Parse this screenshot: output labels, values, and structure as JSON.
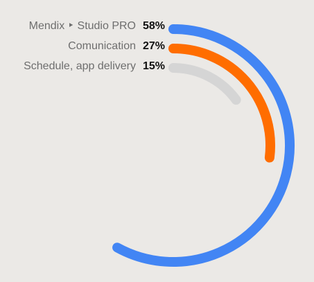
{
  "chart_data": {
    "type": "radial-bar",
    "title": "",
    "series": [
      {
        "name": "Mendix ‣ Studio PRO",
        "value": 58,
        "value_label": "58%",
        "color": "#4285f4"
      },
      {
        "name": "Comunication",
        "value": 27,
        "value_label": "27%",
        "color": "#ff6d00"
      },
      {
        "name": "Schedule, app delivery",
        "value": 15,
        "value_label": "15%",
        "color": "#d5d5d5"
      }
    ],
    "max": 100
  }
}
